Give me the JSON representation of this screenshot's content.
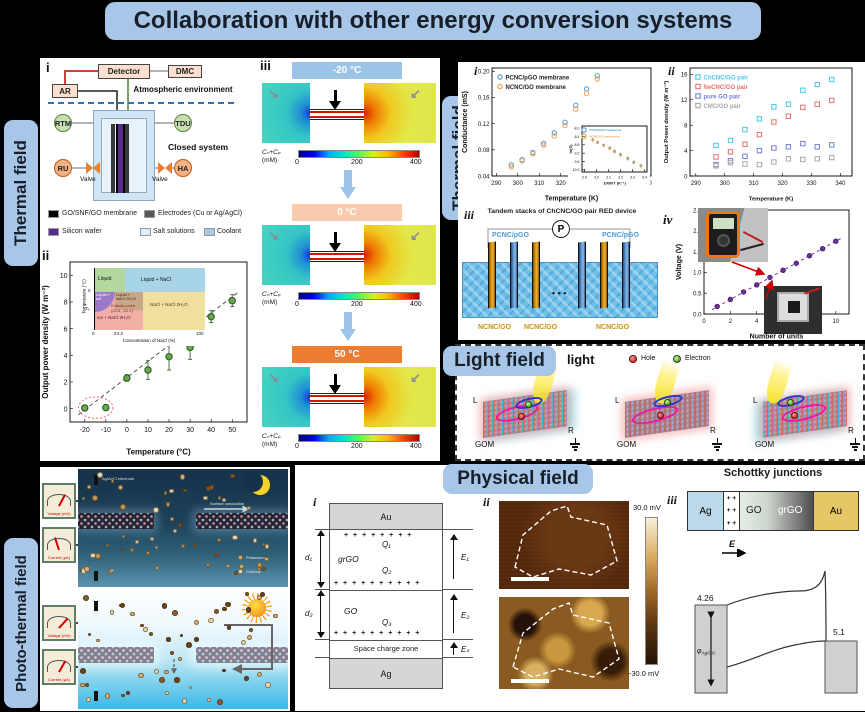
{
  "title": "Collaboration with other energy conversion systems",
  "colors": {
    "accent_blue": "#a8c7e8",
    "page_bg": "#000000",
    "panel_bg": "#ffffff"
  },
  "sections": {
    "thermal_left_label": "Thermal field",
    "thermal_right_label": "Thermal field",
    "light_label": "Light field",
    "photo_thermal_label": "Photo-thermal field",
    "physical_label": "Physical field"
  },
  "thermal_left": {
    "i": {
      "tag": "i",
      "detector": "Detector",
      "dmc": "DMC",
      "ar": "AR",
      "atmospheric": "Atmospheric environment",
      "closed_system": "Closed system",
      "rtm": "RTM",
      "tdu": "TDU",
      "ru": "RU",
      "ha": "HA",
      "valve_left": "Valve",
      "valve_right": "Valve",
      "legend": [
        {
          "label": "GO/SNF/GO membrane",
          "color": "#000000"
        },
        {
          "label": "Electrodes (Cu or Ag/AgCl)",
          "color": "#595959"
        },
        {
          "label": "Silicon wafer",
          "color": "#5a2b8c"
        },
        {
          "label": "Salt solutions",
          "color": "#dcecf8"
        },
        {
          "label": "Coolant",
          "color": "#a6c9e8"
        }
      ]
    },
    "ii": {
      "tag": "ii",
      "inset": {
        "ylabel": "Temperature (°C)",
        "xlabel": "Concentration of NaCl (%)",
        "ytick_zero": "0",
        "ytick_te": "Tₑ",
        "xtick_0": "0",
        "xtick_233": "23.3",
        "xtick_100": "100",
        "liquid": "Liquid",
        "liquid_nacl": "Liquid + NaCl",
        "liquid_ice": "Liquid + Ice",
        "liquid_nacl2h2o": "Liquid + NaCl·2H₂O",
        "nacl_nacl2h2o": "NaCl + NaCl·2H₂O",
        "ice_nacl2h2o": "Ice + NaCl·2H₂O",
        "eutectic1": "Eutectic point",
        "eutectic2": "(23.3, -21.1)"
      }
    },
    "iii": {
      "tag": "iii",
      "temps": [
        "-20 °C",
        "0 °C",
        "50 °C"
      ],
      "header_colors": [
        "#9dc3e6",
        "#f8cbad",
        "#ed7d31"
      ],
      "colorbar_label": "Cₙ+Cₚ",
      "colorbar_unit": "(mM)",
      "colorbar_ticks": [
        "0",
        "200",
        "400"
      ]
    }
  },
  "thermal_right": {
    "i_tag": "i",
    "ii_tag": "ii",
    "iii_tag": "iii",
    "iv_tag": "iv",
    "iii_title": "Tandem stacks of ChCNC/GO pair RED device",
    "iii_p": "P",
    "iii_dots": "• • •",
    "pcnc_left": "PCNC/pGO",
    "pcnc_right": "PCNC/pGO",
    "ncnc_1": "NCNC/GO",
    "ncnc_2": "NCNC/GO",
    "ncnc_3": "NCNC/GO"
  },
  "light": {
    "light_text": "light",
    "hole": "Hole",
    "electron": "Electron",
    "devices": [
      {
        "l": "L",
        "r": "R",
        "gom": "GOM"
      },
      {
        "l": "L",
        "r": "R",
        "gom": "GOM"
      },
      {
        "l": "L",
        "r": "R",
        "gom": "GOM"
      }
    ]
  },
  "photo_thermal": {
    "night": {
      "electrode": "Ag/AgCl electrode",
      "surface": "Surface conduction",
      "potassium": "Potassium",
      "chloride": "Chloride"
    },
    "meters": {
      "voltage": "Voltage (mV)",
      "current": "Current (μA)"
    }
  },
  "physical": {
    "i": {
      "tag": "i",
      "au": "Au",
      "grgo": "grGO",
      "go": "GO",
      "ag": "Ag",
      "scz": "Space charge zone",
      "q1": "Q₁",
      "q2": "Q₂",
      "q3": "Q₃",
      "d1": "d₁",
      "d2": "d₂",
      "e1": "E₁",
      "e2": "E₂",
      "es": "Eₛ",
      "plus_row_short": "+ + + + + + + +",
      "plus_row_long": "+ + + + + + + + + +"
    },
    "ii": {
      "tag": "ii",
      "cb_top": "30.0 mV",
      "cb_bottom": "−30.0 mV"
    },
    "iii": {
      "tag": "iii",
      "title": "Schottky junctions",
      "ag": "Ag",
      "go": "GO",
      "grgo": "grGO",
      "au": "Au",
      "plus": "+ +",
      "e_field": "E",
      "wf_left": "4.26",
      "wf_right": "5.1",
      "phi": "φ",
      "phi_sub": "Ag/GO"
    }
  },
  "chart_data": [
    {
      "id": "chartA",
      "type": "scatter",
      "xlabel": "Temperature (°C)",
      "ylabel": "Output power density (W m⁻²)",
      "xlim": [
        -27,
        57
      ],
      "ylim": [
        -1,
        11
      ],
      "xticks": [
        -20,
        -10,
        0,
        10,
        20,
        30,
        40,
        50
      ],
      "yticks": [
        0,
        2,
        4,
        6,
        8,
        10
      ],
      "fs": 7,
      "lblfs": 8,
      "margins": [
        8,
        8,
        34,
        30
      ],
      "series": [
        {
          "name": "output power vs temperature",
          "marker": "o",
          "fill": "#6aa84f",
          "edge": "#24511a",
          "size": 3.2,
          "x": [
            -20,
            -10,
            0,
            10,
            20,
            30,
            40,
            50
          ],
          "y": [
            0.05,
            0.08,
            2.3,
            2.9,
            3.9,
            4.6,
            6.9,
            8.1
          ],
          "yerr": [
            0.15,
            0.15,
            0.25,
            0.7,
            1.0,
            0.9,
            0.45,
            0.45
          ]
        }
      ],
      "trend": {
        "x": [
          -23,
          53
        ],
        "y": [
          -0.45,
          8.75
        ],
        "color": "#555555",
        "dash": "4,3"
      },
      "ellipse": {
        "cx": -14.8,
        "cy": 0.07,
        "rx": 8.2,
        "ry": 0.8,
        "color": "#e87070"
      }
    },
    {
      "id": "chartB",
      "type": "scatter",
      "xlabel": "Temperature (K)",
      "ylabel": "Conductance (mS)",
      "xlim": [
        288,
        362
      ],
      "ylim": [
        0.04,
        0.205
      ],
      "xticks": [
        290,
        300,
        310,
        320,
        330,
        340,
        350,
        360
      ],
      "yticks": [
        0.04,
        0.08,
        0.12,
        0.16,
        0.2
      ],
      "ylabels": [
        "0.04",
        "0.08",
        "0.12",
        "0.16",
        "0.20"
      ],
      "fs": 6,
      "lblfs": 7,
      "margins": [
        6,
        5,
        26,
        32
      ],
      "series": [
        {
          "name": "PCNC/pGO membrane",
          "marker": "o",
          "fill": "none",
          "edge": "#4f9bd5",
          "size": 2.2,
          "x": [
            297,
            302,
            307,
            312,
            317,
            322,
            327,
            332,
            337
          ],
          "y": [
            0.057,
            0.065,
            0.076,
            0.09,
            0.106,
            0.122,
            0.148,
            0.173,
            0.193
          ]
        },
        {
          "name": "NCNC/GO membrane",
          "marker": "o",
          "fill": "none",
          "edge": "#f0a050",
          "size": 2.2,
          "x": [
            297,
            302,
            307,
            312,
            317,
            322,
            327,
            332,
            337
          ],
          "y": [
            0.054,
            0.063,
            0.074,
            0.087,
            0.101,
            0.117,
            0.142,
            0.166,
            0.188
          ]
        }
      ],
      "legend": {
        "x": 8,
        "y": 9,
        "entries": [
          {
            "label": "PCNC/pGO membrane",
            "color": "#4f9bd5",
            "marker": "o",
            "tcolor": "#222222"
          },
          {
            "label": "NCNC/GO membrane",
            "color": "#f0a050",
            "marker": "o",
            "tcolor": "#222222"
          }
        ]
      },
      "inset": {
        "id": "chartBinset",
        "type": "scatter",
        "xlabel": "1000/T (K⁻¹)",
        "ylabel": "ln(S)",
        "xlim": [
          2.88,
          3.42
        ],
        "ylim": [
          -10.1,
          -7.9
        ],
        "xticks": [
          2.9,
          3.0,
          3.1,
          3.2,
          3.3,
          3.4
        ],
        "xlabels": [
          "2.9",
          "3.0",
          "3.1",
          "3.2",
          "3.3",
          "3.4"
        ],
        "yticks": [
          -8.0,
          -8.4,
          -8.8,
          -9.2,
          -9.6,
          -10.0
        ],
        "ylabels": [
          "-8.0",
          "-8.4",
          "-8.8",
          "-9.2",
          "-9.6",
          "-10.0"
        ],
        "fs": 3.5,
        "lblfs": 4,
        "margins": [
          4,
          3,
          14,
          14
        ],
        "series": [
          {
            "name": "PCNC/pGO membrane",
            "marker": "o",
            "fill": "none",
            "edge": "#4f9bd5",
            "size": 0.9,
            "x": [
              2.97,
              3.01,
              3.06,
              3.11,
              3.15,
              3.2,
              3.26,
              3.31,
              3.37
            ],
            "y": [
              -8.55,
              -8.67,
              -8.81,
              -8.95,
              -9.1,
              -9.26,
              -9.44,
              -9.62,
              -9.79
            ]
          },
          {
            "name": "NCNC/GO membrane",
            "marker": "o",
            "fill": "none",
            "edge": "#f0a050",
            "size": 0.9,
            "x": [
              2.97,
              3.01,
              3.06,
              3.11,
              3.15,
              3.2,
              3.26,
              3.31,
              3.37
            ],
            "y": [
              -8.58,
              -8.7,
              -8.84,
              -8.98,
              -9.14,
              -9.3,
              -9.48,
              -9.66,
              -9.82
            ]
          }
        ],
        "legend": {
          "x": 2,
          "y": 4,
          "fs": 3,
          "entries": [
            {
              "label": "PCNC/pGO membrane",
              "color": "#4f9bd5",
              "marker": "o"
            },
            {
              "label": "NCNC/GO membrane",
              "color": "#f0a050",
              "marker": "o"
            }
          ]
        }
      }
    },
    {
      "id": "chartC",
      "type": "scatter",
      "xlabel": "Temperature (K)",
      "ylabel": "Output Power density (W m⁻²)",
      "xlim": [
        288,
        344
      ],
      "ylim": [
        0,
        17
      ],
      "xticks": [
        290,
        300,
        310,
        320,
        330,
        340
      ],
      "yticks": [
        0,
        4,
        8,
        12,
        16
      ],
      "fs": 6,
      "lblfs": 5.8,
      "margins": [
        6,
        6,
        26,
        28
      ],
      "series": [
        {
          "name": "ChCNC/GO pair",
          "marker": "s",
          "fill": "none",
          "edge": "#48c8e8",
          "size": 2.2,
          "x": [
            297,
            302,
            307,
            312,
            317,
            322,
            327,
            332,
            337
          ],
          "y": [
            4.8,
            5.6,
            7.3,
            9.0,
            10.9,
            11.3,
            13.5,
            14.4,
            15.2
          ]
        },
        {
          "name": "NeCNC/GO pair",
          "marker": "s",
          "fill": "none",
          "edge": "#e87070",
          "size": 2.2,
          "x": [
            297,
            302,
            307,
            312,
            317,
            322,
            327,
            332,
            337
          ],
          "y": [
            3.0,
            3.8,
            5.0,
            6.5,
            8.5,
            9.4,
            10.8,
            11.3,
            11.9
          ]
        },
        {
          "name": "pure GO pair",
          "marker": "s",
          "fill": "none",
          "edge": "#7080d8",
          "size": 2.2,
          "x": [
            297,
            302,
            307,
            312,
            317,
            322,
            327,
            332,
            337
          ],
          "y": [
            1.8,
            2.4,
            3.1,
            4.0,
            4.4,
            4.6,
            5.1,
            4.6,
            4.9
          ]
        },
        {
          "name": "CMC/GO pair",
          "marker": "s",
          "fill": "none",
          "edge": "#a8a8a8",
          "size": 2.2,
          "x": [
            297,
            302,
            307,
            312,
            317,
            322,
            327,
            332,
            337
          ],
          "y": [
            1.6,
            2.1,
            1.9,
            1.8,
            2.2,
            2.7,
            2.6,
            2.7,
            2.9
          ]
        }
      ],
      "legend": {
        "x": 8,
        "y": 9,
        "entries": [
          {
            "label": "ChCNC/GO pair",
            "color": "#48c8e8",
            "marker": "s"
          },
          {
            "label": "NeCNC/GO pair",
            "color": "#e87070",
            "marker": "s"
          },
          {
            "label": "pure GO pair",
            "color": "#7080d8",
            "marker": "s"
          },
          {
            "label": "CMC/GO pair",
            "color": "#a8a8a8",
            "marker": "s"
          }
        ]
      }
    },
    {
      "id": "chartD",
      "type": "scatter",
      "xlabel": "Number of units",
      "ylabel": "Voltage (V)",
      "xlim": [
        0,
        11
      ],
      "ylim": [
        0,
        2.5
      ],
      "xticks": [
        0,
        2,
        4,
        6,
        8,
        10
      ],
      "yticks": [
        0,
        0.5,
        1,
        1.5,
        2,
        2.5
      ],
      "ylabels": [
        "0.0",
        "0.5",
        "1.0",
        "1.5",
        "2.0",
        "2.5"
      ],
      "fs": 6,
      "lblfs": 7,
      "margins": [
        8,
        10,
        26,
        30
      ],
      "series": [
        {
          "name": "stack voltage",
          "marker": "o",
          "fill": "#7030a0",
          "edge": "#4a1f6e",
          "size": 2.2,
          "x": [
            1,
            2,
            3,
            4,
            5,
            6,
            7,
            8,
            9,
            10
          ],
          "y": [
            0.18,
            0.35,
            0.53,
            0.7,
            0.88,
            1.05,
            1.22,
            1.4,
            1.57,
            1.75
          ]
        }
      ],
      "trend": {
        "x": [
          0.6,
          10.4
        ],
        "y": [
          0.105,
          1.82
        ],
        "color": "#7030a0",
        "dash": "3,3"
      }
    }
  ]
}
